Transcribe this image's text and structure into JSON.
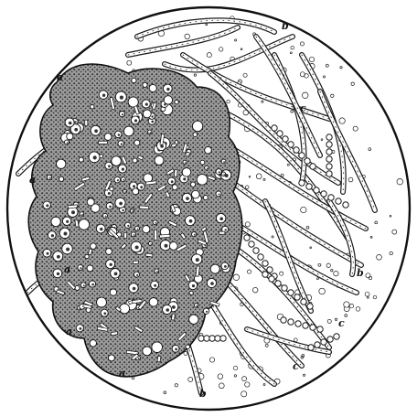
{
  "figure": {
    "style": "engraving",
    "ink_color": "#1a1a1a",
    "paper_color": "#ffffff",
    "labels": {
      "a1": "a",
      "a2": "a",
      "a3": "a",
      "a4": "a",
      "a5": "a",
      "b1": "b",
      "b2": "b",
      "b3": "b",
      "c1": "c",
      "c2": "c",
      "c3": "c"
    }
  }
}
